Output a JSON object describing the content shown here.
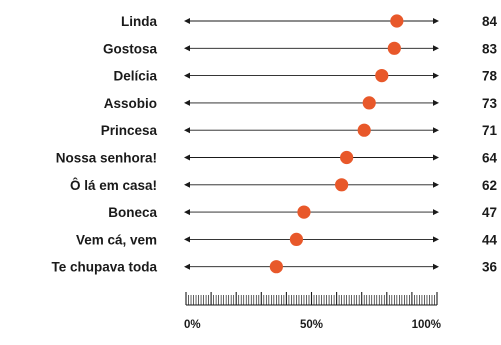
{
  "chart_data": {
    "type": "dot",
    "categories": [
      "Linda",
      "Gostosa",
      "Delícia",
      "Assobio",
      "Princesa",
      "Nossa senhora!",
      "Ô lá em casa!",
      "Boneca",
      "Vem cá, vem",
      "Te chupava toda"
    ],
    "values": [
      84,
      83,
      78,
      73,
      71,
      64,
      62,
      47,
      44,
      36
    ],
    "value_labels": [
      "84",
      "83",
      "78",
      "73",
      "71",
      "64",
      "62",
      "47",
      "44",
      "36"
    ],
    "xlim": [
      0,
      100
    ],
    "x_ticks": [
      {
        "value": 0,
        "label": "0%"
      },
      {
        "value": 50,
        "label": "50%"
      },
      {
        "value": 100,
        "label": "100%"
      }
    ],
    "dot_color": "#e8582a",
    "line_color": "#1a1a1a",
    "grid": false,
    "legend": "none"
  }
}
